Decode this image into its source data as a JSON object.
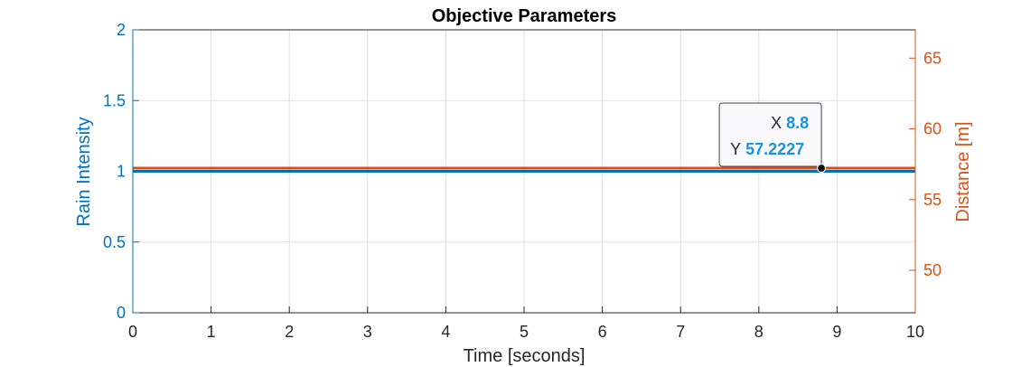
{
  "chart_data": {
    "type": "line",
    "title": "Objective Parameters",
    "xlabel": "Time [seconds]",
    "ylabel_left": "Rain Intensity",
    "ylabel_right": "Distance [m]",
    "xlim": [
      0,
      10
    ],
    "ylim_left": [
      0,
      2
    ],
    "ylim_right": [
      47,
      67
    ],
    "x_ticks": [
      0,
      1,
      2,
      3,
      4,
      5,
      6,
      7,
      8,
      9,
      10
    ],
    "y_left_ticks": [
      "0",
      "0.5",
      "1",
      "1.5",
      "2"
    ],
    "y_right_ticks": [
      "50",
      "55",
      "60",
      "65"
    ],
    "grid": true,
    "series": [
      {
        "axis": "left",
        "color": "#0072BD",
        "x": [
          0,
          10
        ],
        "y": [
          1,
          1
        ]
      },
      {
        "axis": "right",
        "color": "#D95319",
        "x": [
          0,
          10
        ],
        "y": [
          57.2227,
          57.2227
        ]
      }
    ],
    "datatip": {
      "x_label": "X",
      "x_value": "8.8",
      "y_label": "Y",
      "y_value": "57.2227",
      "x": 8.8,
      "y": 57.2227,
      "axis": "right"
    }
  }
}
